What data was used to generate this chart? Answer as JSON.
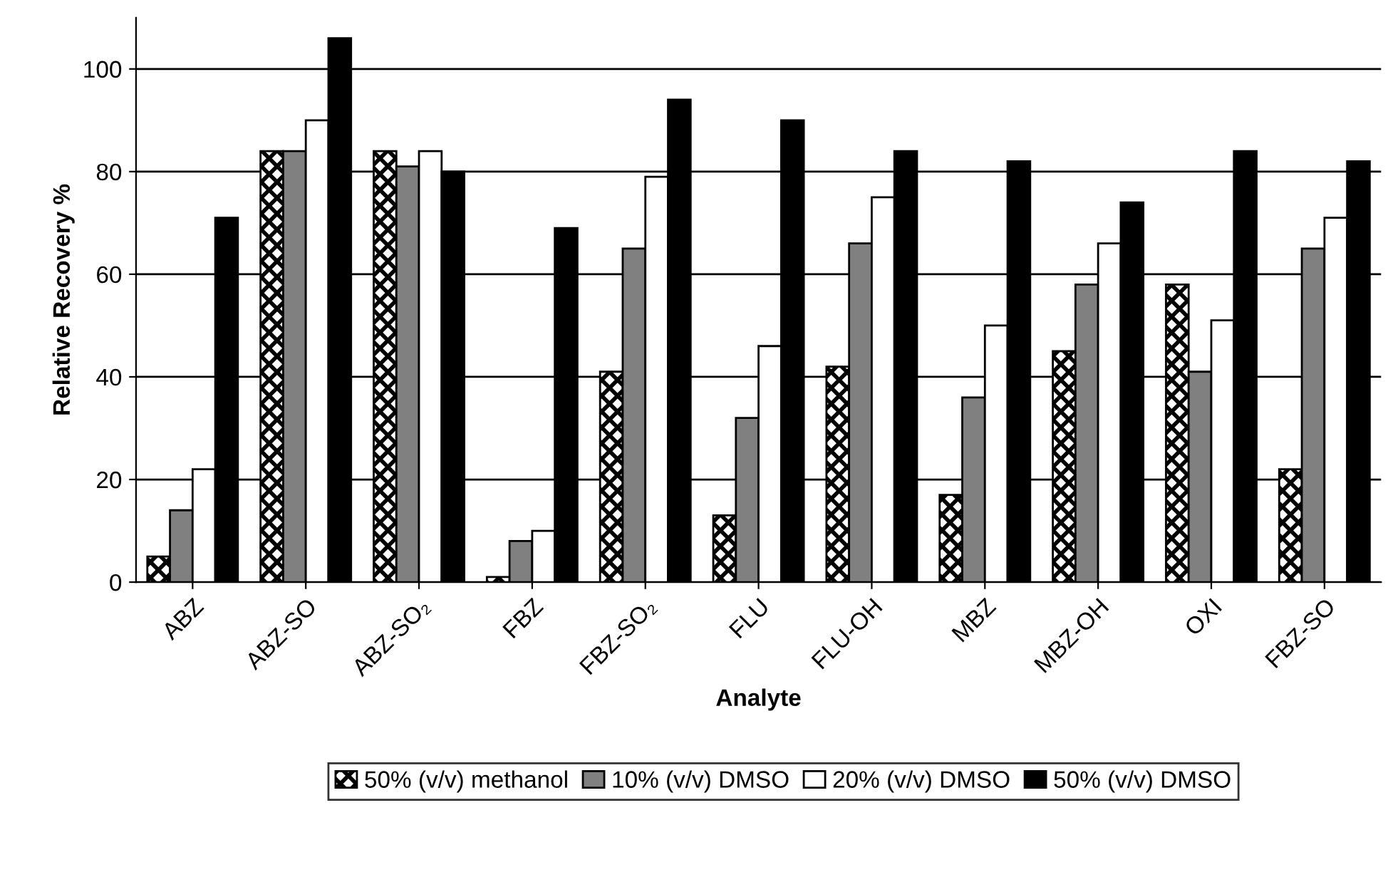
{
  "chart_data": {
    "type": "bar",
    "xlabel": "Analyte",
    "ylabel": "Relative Recovery %",
    "categories": [
      "ABZ",
      "ABZ-SO",
      "ABZ-SO₂",
      "FBZ",
      "FBZ-SO₂",
      "FLU",
      "FLU-OH",
      "MBZ",
      "MBZ-OH",
      "OXI",
      "FBZ-SO"
    ],
    "series": [
      {
        "name": "50% (v/v) methanol",
        "color": "#000000",
        "values": [
          5,
          84,
          84,
          1,
          41,
          13,
          42,
          17,
          45,
          58,
          22
        ]
      },
      {
        "name": "10% (v/v) DMSO",
        "color": "#808080",
        "values": [
          14,
          84,
          81,
          8,
          65,
          32,
          66,
          36,
          58,
          41,
          65
        ]
      },
      {
        "name": "20% (v/v) DMSO",
        "color": "#ffffff",
        "values": [
          22,
          90,
          84,
          10,
          79,
          46,
          75,
          50,
          66,
          51,
          71
        ]
      },
      {
        "name": "50% (v/v) DMSO",
        "color": "#000000",
        "values": [
          71,
          106,
          80,
          69,
          94,
          90,
          84,
          82,
          74,
          84,
          82
        ]
      }
    ],
    "ylim": [
      0,
      110
    ],
    "yticks": [
      0,
      20,
      40,
      60,
      80,
      100
    ],
    "grid": "y",
    "legend": "bottom"
  }
}
